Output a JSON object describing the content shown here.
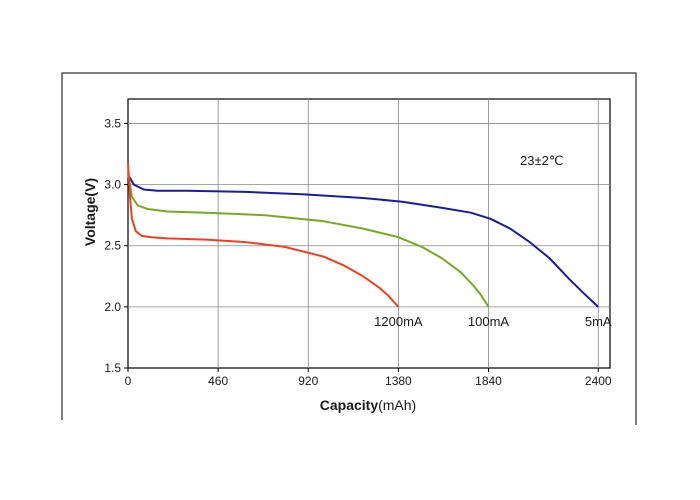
{
  "chart_data": {
    "type": "line",
    "xlabel_bold": "Capacity",
    "xlabel_unit": "(mAh)",
    "ylabel": "Voltage(V)",
    "annotation": "23±2℃",
    "xlim": [
      0,
      2460
    ],
    "ylim": [
      1.5,
      3.7
    ],
    "x_ticks": [
      0,
      460,
      920,
      1380,
      1840,
      2400
    ],
    "x_tick_labels": [
      "0",
      "460",
      "920",
      "1380",
      "1840",
      "2400"
    ],
    "y_ticks": [
      1.5,
      2.0,
      2.5,
      3.0,
      3.5
    ],
    "y_tick_labels": [
      "1.5",
      "2.0",
      "2.5",
      "3.0",
      "3.5"
    ],
    "grid": true,
    "series": [
      {
        "name": "5mA",
        "color": "#1c1ca0",
        "x": [
          0,
          30,
          80,
          150,
          300,
          600,
          900,
          1200,
          1400,
          1600,
          1750,
          1850,
          1950,
          2050,
          2150,
          2250,
          2320,
          2400
        ],
        "y": [
          3.08,
          3.0,
          2.96,
          2.95,
          2.95,
          2.94,
          2.92,
          2.89,
          2.86,
          2.81,
          2.77,
          2.72,
          2.64,
          2.53,
          2.4,
          2.23,
          2.12,
          2.0
        ]
      },
      {
        "name": "100mA",
        "color": "#7aa81e",
        "x": [
          0,
          20,
          50,
          100,
          200,
          400,
          700,
          1000,
          1200,
          1380,
          1500,
          1600,
          1700,
          1760,
          1800,
          1840
        ],
        "y": [
          3.1,
          2.9,
          2.83,
          2.8,
          2.78,
          2.77,
          2.75,
          2.7,
          2.64,
          2.57,
          2.49,
          2.4,
          2.28,
          2.18,
          2.1,
          2.0
        ]
      },
      {
        "name": "1200mA",
        "color": "#f0401e",
        "x": [
          0,
          10,
          20,
          40,
          70,
          120,
          200,
          400,
          600,
          800,
          1000,
          1100,
          1200,
          1280,
          1330,
          1380
        ],
        "y": [
          3.18,
          2.9,
          2.72,
          2.62,
          2.58,
          2.57,
          2.56,
          2.55,
          2.53,
          2.49,
          2.41,
          2.34,
          2.25,
          2.16,
          2.09,
          2.0
        ]
      }
    ],
    "series_labels": [
      {
        "text": "1200mA",
        "x": 1380,
        "y": 2.0
      },
      {
        "text": "100mA",
        "x": 1840,
        "y": 2.0
      },
      {
        "text": "5mA",
        "x": 2400,
        "y": 2.0
      }
    ]
  }
}
